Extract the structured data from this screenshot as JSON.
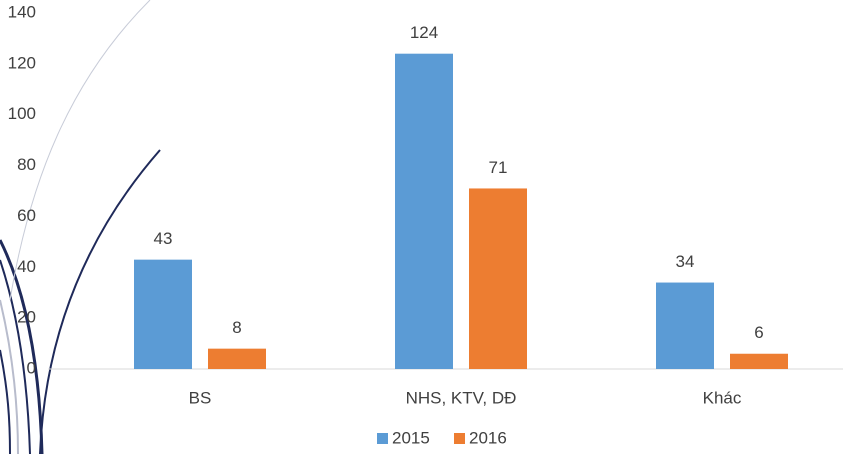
{
  "chart_data": {
    "type": "bar",
    "categories": [
      "BS",
      "NHS, KTV, DĐ",
      "Khác"
    ],
    "series": [
      {
        "name": "2015",
        "color": "#5b9bd5",
        "values": [
          43,
          124,
          34
        ]
      },
      {
        "name": "2016",
        "color": "#ed7d31",
        "values": [
          8,
          71,
          6
        ]
      }
    ],
    "ylim": [
      0,
      140
    ],
    "yticks": [
      0,
      20,
      40,
      60,
      80,
      100,
      120,
      140
    ],
    "grid": false,
    "legend": "bottom"
  }
}
